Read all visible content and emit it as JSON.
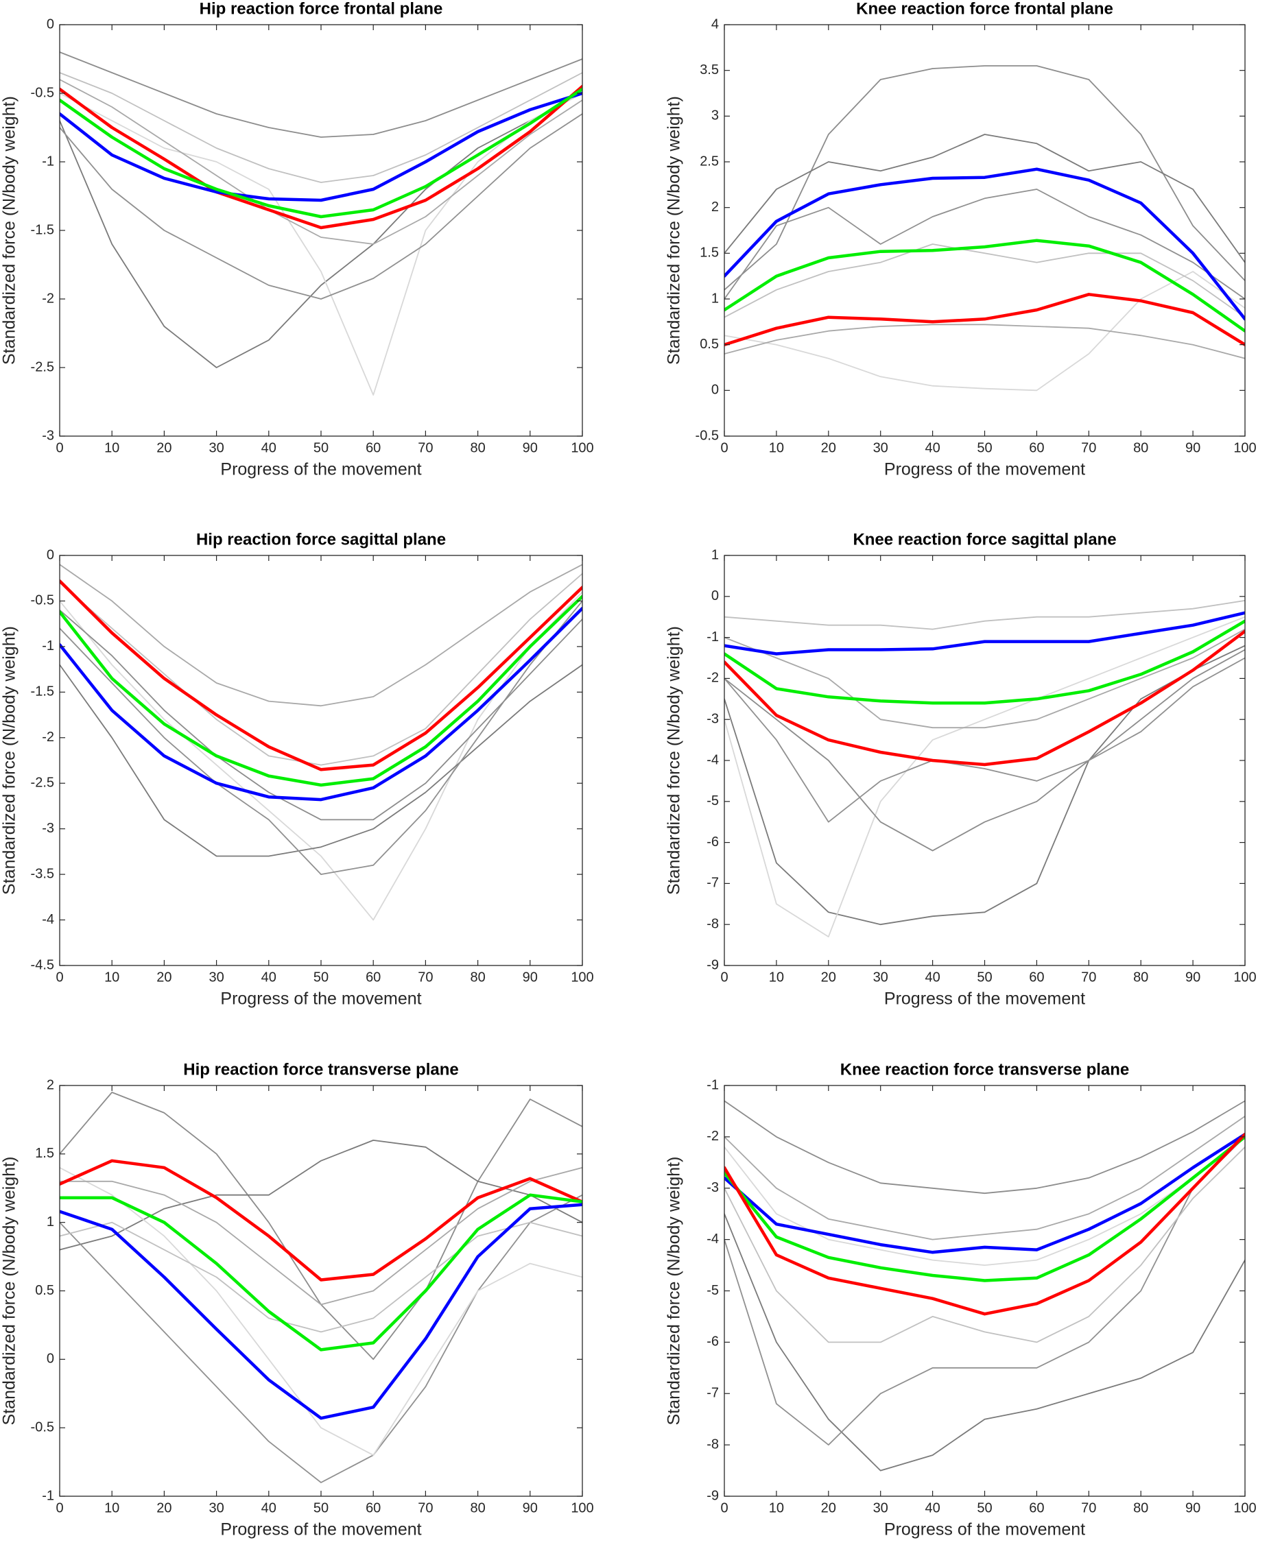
{
  "chart_data": [
    {
      "type": "line",
      "title": "Hip reaction force frontal plane",
      "xlabel": "Progress of the movement",
      "ylabel": "Standardized force (N/body weight)",
      "x": [
        0,
        10,
        20,
        30,
        40,
        50,
        60,
        70,
        80,
        90,
        100
      ],
      "xlim": [
        0,
        100
      ],
      "xticks": [
        0,
        10,
        20,
        30,
        40,
        50,
        60,
        70,
        80,
        90,
        100
      ],
      "ylim": [
        -3,
        0
      ],
      "yticks": [
        -3,
        -2.5,
        -2,
        -1.5,
        -1,
        -0.5,
        0
      ],
      "series": [
        {
          "color": "#8c8c8c",
          "values": [
            -0.2,
            -0.35,
            -0.5,
            -0.65,
            -0.75,
            -0.82,
            -0.8,
            -0.7,
            -0.55,
            -0.4,
            -0.25
          ]
        },
        {
          "color": "#7a7a7a",
          "values": [
            -0.7,
            -1.6,
            -2.2,
            -2.5,
            -2.3,
            -1.9,
            -1.6,
            -1.2,
            -0.9,
            -0.7,
            -0.5
          ]
        },
        {
          "color": "#d8d8d8",
          "values": [
            -0.5,
            -0.7,
            -0.9,
            -1.0,
            -1.2,
            -1.8,
            -2.7,
            -1.5,
            -1.0,
            -0.7,
            -0.5
          ]
        },
        {
          "color": "#a8a8a8",
          "values": [
            -0.4,
            -0.6,
            -0.85,
            -1.1,
            -1.35,
            -1.55,
            -1.6,
            -1.4,
            -1.1,
            -0.8,
            -0.55
          ]
        },
        {
          "color": "#909090",
          "values": [
            -0.75,
            -1.2,
            -1.5,
            -1.7,
            -1.9,
            -2.0,
            -1.85,
            -1.6,
            -1.25,
            -0.9,
            -0.65
          ]
        },
        {
          "color": "#c0c0c0",
          "values": [
            -0.35,
            -0.5,
            -0.7,
            -0.9,
            -1.05,
            -1.15,
            -1.1,
            -0.95,
            -0.75,
            -0.55,
            -0.35
          ]
        },
        {
          "color": "#ff0000",
          "values": [
            -0.47,
            -0.75,
            -0.98,
            -1.22,
            -1.35,
            -1.48,
            -1.42,
            -1.28,
            -1.05,
            -0.78,
            -0.45
          ]
        },
        {
          "color": "#0000ff",
          "values": [
            -0.65,
            -0.95,
            -1.12,
            -1.22,
            -1.27,
            -1.28,
            -1.2,
            -1.0,
            -0.78,
            -0.62,
            -0.5
          ]
        },
        {
          "color": "#00ee00",
          "values": [
            -0.55,
            -0.82,
            -1.05,
            -1.2,
            -1.32,
            -1.4,
            -1.35,
            -1.18,
            -0.95,
            -0.72,
            -0.47
          ]
        }
      ]
    },
    {
      "type": "line",
      "title": "Knee reaction force frontal plane",
      "xlabel": "Progress of the movement",
      "ylabel": "Standardized force (N/body weight)",
      "x": [
        0,
        10,
        20,
        30,
        40,
        50,
        60,
        70,
        80,
        90,
        100
      ],
      "xlim": [
        0,
        100
      ],
      "xticks": [
        0,
        10,
        20,
        30,
        40,
        50,
        60,
        70,
        80,
        90,
        100
      ],
      "ylim": [
        -0.5,
        4
      ],
      "yticks": [
        -0.5,
        0,
        0.5,
        1,
        1.5,
        2,
        2.5,
        3,
        3.5,
        4
      ],
      "series": [
        {
          "color": "#8c8c8c",
          "values": [
            1.1,
            1.6,
            2.8,
            3.4,
            3.52,
            3.55,
            3.55,
            3.4,
            2.8,
            1.8,
            1.2
          ]
        },
        {
          "color": "#d8d8d8",
          "values": [
            0.6,
            0.5,
            0.35,
            0.15,
            0.05,
            0.02,
            0.0,
            0.4,
            1.0,
            1.3,
            0.9
          ]
        },
        {
          "color": "#a8a8a8",
          "values": [
            0.4,
            0.55,
            0.65,
            0.7,
            0.72,
            0.72,
            0.7,
            0.68,
            0.6,
            0.5,
            0.35
          ]
        },
        {
          "color": "#7a7a7a",
          "values": [
            1.5,
            2.2,
            2.5,
            2.4,
            2.55,
            2.8,
            2.7,
            2.4,
            2.5,
            2.2,
            1.4
          ]
        },
        {
          "color": "#c0c0c0",
          "values": [
            0.8,
            1.1,
            1.3,
            1.4,
            1.6,
            1.5,
            1.4,
            1.5,
            1.5,
            1.2,
            0.8
          ]
        },
        {
          "color": "#909090",
          "values": [
            1.0,
            1.8,
            2.0,
            1.6,
            1.9,
            2.1,
            2.2,
            1.9,
            1.7,
            1.4,
            1.0
          ]
        },
        {
          "color": "#0000ff",
          "values": [
            1.25,
            1.85,
            2.15,
            2.25,
            2.32,
            2.33,
            2.42,
            2.3,
            2.05,
            1.5,
            0.78
          ]
        },
        {
          "color": "#00ee00",
          "values": [
            0.88,
            1.25,
            1.45,
            1.52,
            1.53,
            1.57,
            1.64,
            1.58,
            1.4,
            1.05,
            0.65
          ]
        },
        {
          "color": "#ff0000",
          "values": [
            0.5,
            0.68,
            0.8,
            0.78,
            0.75,
            0.78,
            0.88,
            1.05,
            0.98,
            0.85,
            0.5
          ]
        }
      ]
    },
    {
      "type": "line",
      "title": "Hip reaction force sagittal plane",
      "xlabel": "Progress of the movement",
      "ylabel": "Standardized force (N/body weight)",
      "x": [
        0,
        10,
        20,
        30,
        40,
        50,
        60,
        70,
        80,
        90,
        100
      ],
      "xlim": [
        0,
        100
      ],
      "xticks": [
        0,
        10,
        20,
        30,
        40,
        50,
        60,
        70,
        80,
        90,
        100
      ],
      "ylim": [
        -4.5,
        0
      ],
      "yticks": [
        -4.5,
        -4,
        -3.5,
        -3,
        -2.5,
        -2,
        -1.5,
        -1,
        -0.5,
        0
      ],
      "series": [
        {
          "color": "#a8a8a8",
          "values": [
            -0.1,
            -0.5,
            -1.0,
            -1.4,
            -1.6,
            -1.65,
            -1.55,
            -1.2,
            -0.8,
            -0.4,
            -0.1
          ]
        },
        {
          "color": "#d8d8d8",
          "values": [
            -0.5,
            -1.2,
            -1.8,
            -2.3,
            -2.8,
            -3.3,
            -4.0,
            -3.0,
            -1.8,
            -1.0,
            -0.4
          ]
        },
        {
          "color": "#7a7a7a",
          "values": [
            -1.2,
            -2.0,
            -2.9,
            -3.3,
            -3.3,
            -3.2,
            -3.0,
            -2.6,
            -2.1,
            -1.6,
            -1.2
          ]
        },
        {
          "color": "#909090",
          "values": [
            -0.8,
            -1.4,
            -2.0,
            -2.5,
            -2.9,
            -3.5,
            -3.4,
            -2.8,
            -2.0,
            -1.2,
            -0.5
          ]
        },
        {
          "color": "#c0c0c0",
          "values": [
            -0.3,
            -0.8,
            -1.3,
            -1.8,
            -2.2,
            -2.3,
            -2.2,
            -1.9,
            -1.3,
            -0.7,
            -0.2
          ]
        },
        {
          "color": "#8c8c8c",
          "values": [
            -0.6,
            -1.1,
            -1.7,
            -2.2,
            -2.6,
            -2.9,
            -2.9,
            -2.5,
            -1.9,
            -1.3,
            -0.7
          ]
        },
        {
          "color": "#ff0000",
          "values": [
            -0.28,
            -0.85,
            -1.35,
            -1.75,
            -2.1,
            -2.35,
            -2.3,
            -1.95,
            -1.45,
            -0.9,
            -0.35
          ]
        },
        {
          "color": "#00ee00",
          "values": [
            -0.62,
            -1.35,
            -1.85,
            -2.2,
            -2.42,
            -2.52,
            -2.45,
            -2.1,
            -1.6,
            -1.0,
            -0.45
          ]
        },
        {
          "color": "#0000ff",
          "values": [
            -0.98,
            -1.7,
            -2.2,
            -2.5,
            -2.65,
            -2.68,
            -2.55,
            -2.2,
            -1.7,
            -1.15,
            -0.58
          ]
        }
      ]
    },
    {
      "type": "line",
      "title": "Knee reaction force sagittal plane",
      "xlabel": "Progress of the movement",
      "ylabel": "Standardized force (N/body weight)",
      "x": [
        0,
        10,
        20,
        30,
        40,
        50,
        60,
        70,
        80,
        90,
        100
      ],
      "xlim": [
        0,
        100
      ],
      "xticks": [
        0,
        10,
        20,
        30,
        40,
        50,
        60,
        70,
        80,
        90,
        100
      ],
      "ylim": [
        -9,
        1
      ],
      "yticks": [
        -9,
        -8,
        -7,
        -6,
        -5,
        -4,
        -3,
        -2,
        -1,
        0,
        1
      ],
      "series": [
        {
          "color": "#7a7a7a",
          "values": [
            -2.5,
            -6.5,
            -7.7,
            -8.0,
            -7.8,
            -7.7,
            -7.0,
            -4.0,
            -2.5,
            -1.8,
            -1.2
          ]
        },
        {
          "color": "#d8d8d8",
          "values": [
            -3.0,
            -7.5,
            -8.3,
            -5.0,
            -3.5,
            -3.0,
            -2.5,
            -2.0,
            -1.5,
            -1.0,
            -0.5
          ]
        },
        {
          "color": "#c0c0c0",
          "values": [
            -0.5,
            -0.6,
            -0.7,
            -0.7,
            -0.8,
            -0.6,
            -0.5,
            -0.5,
            -0.4,
            -0.3,
            -0.1
          ]
        },
        {
          "color": "#8c8c8c",
          "values": [
            -2.0,
            -3.0,
            -4.0,
            -5.5,
            -6.2,
            -5.5,
            -5.0,
            -4.0,
            -3.0,
            -2.0,
            -1.3
          ]
        },
        {
          "color": "#a8a8a8",
          "values": [
            -1.0,
            -1.5,
            -2.0,
            -3.0,
            -3.2,
            -3.2,
            -3.0,
            -2.5,
            -2.0,
            -1.5,
            -0.8
          ]
        },
        {
          "color": "#909090",
          "values": [
            -2.0,
            -3.5,
            -5.5,
            -4.5,
            -4.0,
            -4.2,
            -4.5,
            -4.0,
            -3.3,
            -2.2,
            -1.5
          ]
        },
        {
          "color": "#0000ff",
          "values": [
            -1.2,
            -1.4,
            -1.3,
            -1.3,
            -1.28,
            -1.1,
            -1.1,
            -1.1,
            -0.9,
            -0.7,
            -0.4
          ]
        },
        {
          "color": "#00ee00",
          "values": [
            -1.4,
            -2.25,
            -2.45,
            -2.55,
            -2.6,
            -2.6,
            -2.5,
            -2.3,
            -1.9,
            -1.35,
            -0.6
          ]
        },
        {
          "color": "#ff0000",
          "values": [
            -1.6,
            -2.9,
            -3.5,
            -3.8,
            -4.0,
            -4.1,
            -3.95,
            -3.3,
            -2.6,
            -1.8,
            -0.85
          ]
        }
      ]
    },
    {
      "type": "line",
      "title": "Hip reaction force transverse plane",
      "xlabel": "Progress of the movement",
      "ylabel": "Standardized force (N/body weight)",
      "x": [
        0,
        10,
        20,
        30,
        40,
        50,
        60,
        70,
        80,
        90,
        100
      ],
      "xlim": [
        0,
        100
      ],
      "xticks": [
        0,
        10,
        20,
        30,
        40,
        50,
        60,
        70,
        80,
        90,
        100
      ],
      "ylim": [
        -1,
        2
      ],
      "yticks": [
        -1,
        -0.5,
        0,
        0.5,
        1,
        1.5,
        2
      ],
      "series": [
        {
          "color": "#8c8c8c",
          "values": [
            1.5,
            1.95,
            1.8,
            1.5,
            1.0,
            0.4,
            0.0,
            0.5,
            1.3,
            1.9,
            1.7
          ]
        },
        {
          "color": "#7a7a7a",
          "values": [
            0.8,
            0.9,
            1.1,
            1.2,
            1.2,
            1.45,
            1.6,
            1.55,
            1.3,
            1.2,
            1.0
          ]
        },
        {
          "color": "#909090",
          "values": [
            1.0,
            0.6,
            0.2,
            -0.2,
            -0.6,
            -0.9,
            -0.7,
            -0.2,
            0.5,
            1.0,
            1.2
          ]
        },
        {
          "color": "#d8d8d8",
          "values": [
            1.4,
            1.2,
            0.9,
            0.5,
            0.0,
            -0.5,
            -0.7,
            -0.1,
            0.5,
            0.7,
            0.6
          ]
        },
        {
          "color": "#a8a8a8",
          "values": [
            1.3,
            1.3,
            1.2,
            1.0,
            0.7,
            0.4,
            0.5,
            0.8,
            1.1,
            1.3,
            1.4
          ]
        },
        {
          "color": "#c0c0c0",
          "values": [
            0.9,
            1.0,
            0.8,
            0.6,
            0.3,
            0.2,
            0.3,
            0.6,
            0.9,
            1.0,
            0.9
          ]
        },
        {
          "color": "#ff0000",
          "values": [
            1.28,
            1.45,
            1.4,
            1.18,
            0.9,
            0.58,
            0.62,
            0.88,
            1.18,
            1.32,
            1.15
          ]
        },
        {
          "color": "#00ee00",
          "values": [
            1.18,
            1.18,
            1.0,
            0.7,
            0.35,
            0.07,
            0.12,
            0.5,
            0.95,
            1.2,
            1.15
          ]
        },
        {
          "color": "#0000ff",
          "values": [
            1.08,
            0.95,
            0.6,
            0.22,
            -0.15,
            -0.43,
            -0.35,
            0.15,
            0.75,
            1.1,
            1.13
          ]
        }
      ]
    },
    {
      "type": "line",
      "title": "Knee reaction force transverse plane",
      "xlabel": "Progress of the movement",
      "ylabel": "Standardized force (N/body weight)",
      "x": [
        0,
        10,
        20,
        30,
        40,
        50,
        60,
        70,
        80,
        90,
        100
      ],
      "xlim": [
        0,
        100
      ],
      "xticks": [
        0,
        10,
        20,
        30,
        40,
        50,
        60,
        70,
        80,
        90,
        100
      ],
      "ylim": [
        -9,
        -1
      ],
      "yticks": [
        -9,
        -8,
        -7,
        -6,
        -5,
        -4,
        -3,
        -2,
        -1
      ],
      "series": [
        {
          "color": "#7a7a7a",
          "values": [
            -3.5,
            -6.0,
            -7.5,
            -8.5,
            -8.2,
            -7.5,
            -7.3,
            -7.0,
            -6.7,
            -6.2,
            -4.4
          ]
        },
        {
          "color": "#8c8c8c",
          "values": [
            -1.3,
            -2.0,
            -2.5,
            -2.9,
            -3.0,
            -3.1,
            -3.0,
            -2.8,
            -2.4,
            -1.9,
            -1.3
          ]
        },
        {
          "color": "#909090",
          "values": [
            -4.0,
            -7.2,
            -8.0,
            -7.0,
            -6.5,
            -6.5,
            -6.5,
            -6.0,
            -5.0,
            -3.0,
            -2.0
          ]
        },
        {
          "color": "#a8a8a8",
          "values": [
            -2.0,
            -3.0,
            -3.6,
            -3.8,
            -4.0,
            -3.9,
            -3.8,
            -3.5,
            -3.0,
            -2.3,
            -1.6
          ]
        },
        {
          "color": "#c0c0c0",
          "values": [
            -3.0,
            -5.0,
            -6.0,
            -6.0,
            -5.5,
            -5.8,
            -6.0,
            -5.5,
            -4.5,
            -3.2,
            -2.2
          ]
        },
        {
          "color": "#d8d8d8",
          "values": [
            -2.2,
            -3.5,
            -4.0,
            -4.2,
            -4.4,
            -4.5,
            -4.4,
            -4.0,
            -3.5,
            -2.8,
            -2.0
          ]
        },
        {
          "color": "#0000ff",
          "values": [
            -2.8,
            -3.7,
            -3.9,
            -4.1,
            -4.25,
            -4.15,
            -4.2,
            -3.8,
            -3.3,
            -2.6,
            -1.95
          ]
        },
        {
          "color": "#00ee00",
          "values": [
            -2.7,
            -3.95,
            -4.35,
            -4.55,
            -4.7,
            -4.8,
            -4.75,
            -4.3,
            -3.6,
            -2.8,
            -2.0
          ]
        },
        {
          "color": "#ff0000",
          "values": [
            -2.6,
            -4.3,
            -4.75,
            -4.95,
            -5.15,
            -5.45,
            -5.25,
            -4.8,
            -4.05,
            -3.0,
            -1.95
          ]
        }
      ]
    }
  ]
}
